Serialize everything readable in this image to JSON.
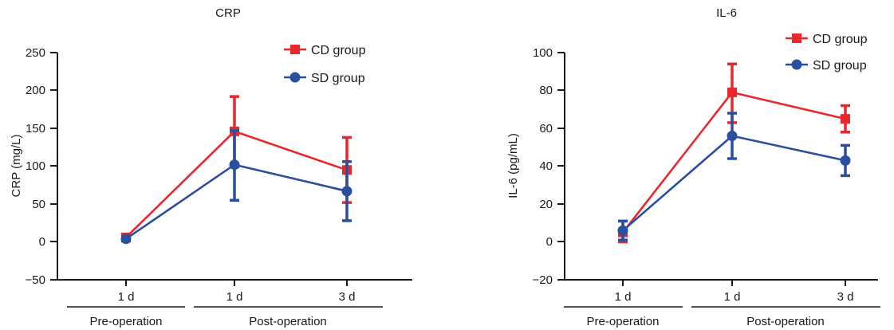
{
  "chart_data": [
    {
      "type": "line",
      "title": "CRP",
      "ylabel": "CRP (mg/L)",
      "ylim": [
        -50,
        250
      ],
      "yticks": [
        "250",
        "200",
        "150",
        "100",
        "50",
        "0",
        "−50"
      ],
      "categories": [
        "1 d",
        "1 d",
        "3 d"
      ],
      "groups": [
        "Pre-operation",
        "Post-operation"
      ],
      "legend_position": "top-right",
      "series": [
        {
          "name": "CD group",
          "color": "#e8282c",
          "marker": "square",
          "values": [
            6,
            146,
            95
          ],
          "err_low": [
            2,
            99,
            52
          ],
          "err_high": [
            9,
            192,
            138
          ]
        },
        {
          "name": "SD group",
          "color": "#2a4f9e",
          "marker": "circle",
          "values": [
            4,
            102,
            67
          ],
          "err_low": [
            1,
            55,
            28
          ],
          "err_high": [
            7,
            147,
            106
          ]
        }
      ]
    },
    {
      "type": "line",
      "title": "IL-6",
      "ylabel": "IL-6 (pg/mL)",
      "ylim": [
        -20,
        100
      ],
      "yticks": [
        "100",
        "80",
        "60",
        "40",
        "20",
        "0",
        "−20"
      ],
      "categories": [
        "1 d",
        "1 d",
        "3 d"
      ],
      "groups": [
        "Pre-operation",
        "Post-operation"
      ],
      "legend_position": "top-right",
      "series": [
        {
          "name": "CD group",
          "color": "#e8282c",
          "marker": "square",
          "values": [
            5,
            79,
            65
          ],
          "err_low": [
            0,
            63,
            58
          ],
          "err_high": [
            11,
            94,
            72
          ]
        },
        {
          "name": "SD group",
          "color": "#2a4f9e",
          "marker": "circle",
          "values": [
            6,
            56,
            43
          ],
          "err_low": [
            1,
            44,
            35
          ],
          "err_high": [
            11,
            68,
            51
          ]
        }
      ]
    }
  ]
}
